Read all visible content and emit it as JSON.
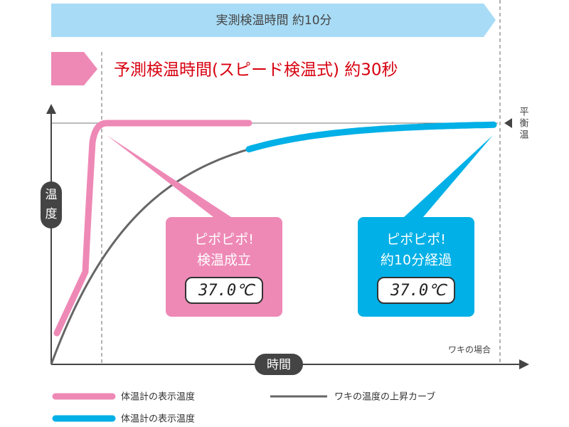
{
  "top_bar": {
    "text": "実測検温時間 約10分"
  },
  "heading": {
    "text": "予測検温時間(スピード検温式) 約30秒"
  },
  "axes": {
    "y_label": [
      "温",
      "度"
    ],
    "x_label": "時間",
    "equilibrium_label": [
      "平",
      "衡",
      "温"
    ],
    "note": "ワキの場合"
  },
  "callouts": [
    {
      "lines": [
        "ピポピポ!",
        "検温成立"
      ],
      "display": "37.0℃"
    },
    {
      "lines": [
        "ピポピポ!",
        "約10分経過"
      ],
      "display": "37.0℃"
    }
  ],
  "legend": [
    {
      "label": "体温計の表示温度"
    },
    {
      "label": "ワキの温度の上昇カーブ"
    },
    {
      "label": "体温計の表示温度"
    }
  ]
}
